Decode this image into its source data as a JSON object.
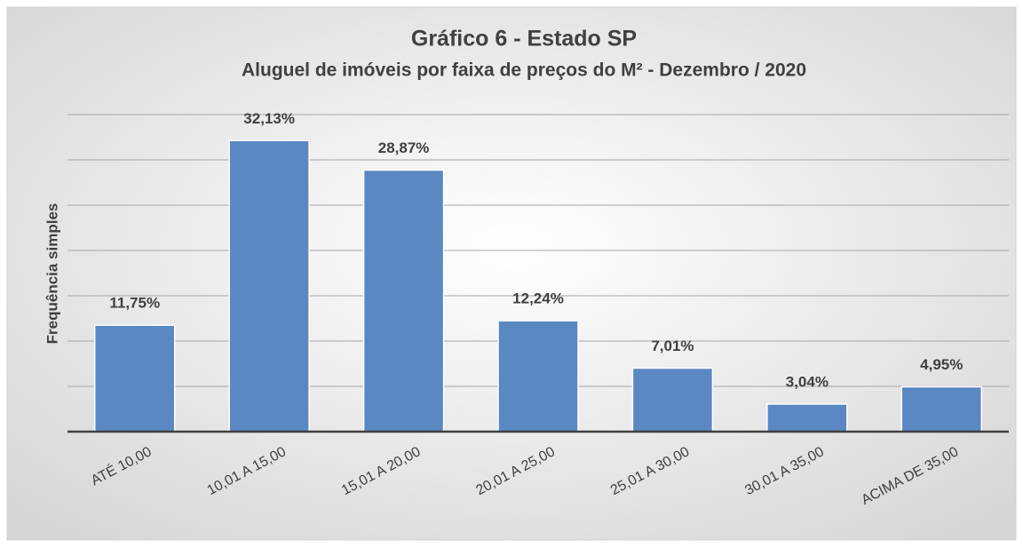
{
  "chart_data": {
    "type": "bar",
    "title": "Gráfico 6 - Estado SP",
    "subtitle": "Aluguel de imóveis por faixa de preços do M² - Dezembro / 2020",
    "y_label": "Frequência simples",
    "categories": [
      "ATÉ 10,00",
      "10,01 A 15,00",
      "15,01 A 20,00",
      "20,01 A 25,00",
      "25,01 A 30,00",
      "30,01 A 35,00",
      "ACIMA DE 35,00"
    ],
    "values": [
      11.75,
      32.13,
      28.87,
      12.24,
      7.01,
      3.04,
      4.95
    ],
    "value_labels": [
      "11,75%",
      "32,13%",
      "28,87%",
      "12,24%",
      "7,01%",
      "3,04%",
      "4,95%"
    ],
    "color": "#5b87c2",
    "ylim": [
      0,
      35
    ],
    "yticks": [
      0,
      5,
      10,
      15,
      20,
      25,
      30,
      35
    ],
    "grid": true
  }
}
